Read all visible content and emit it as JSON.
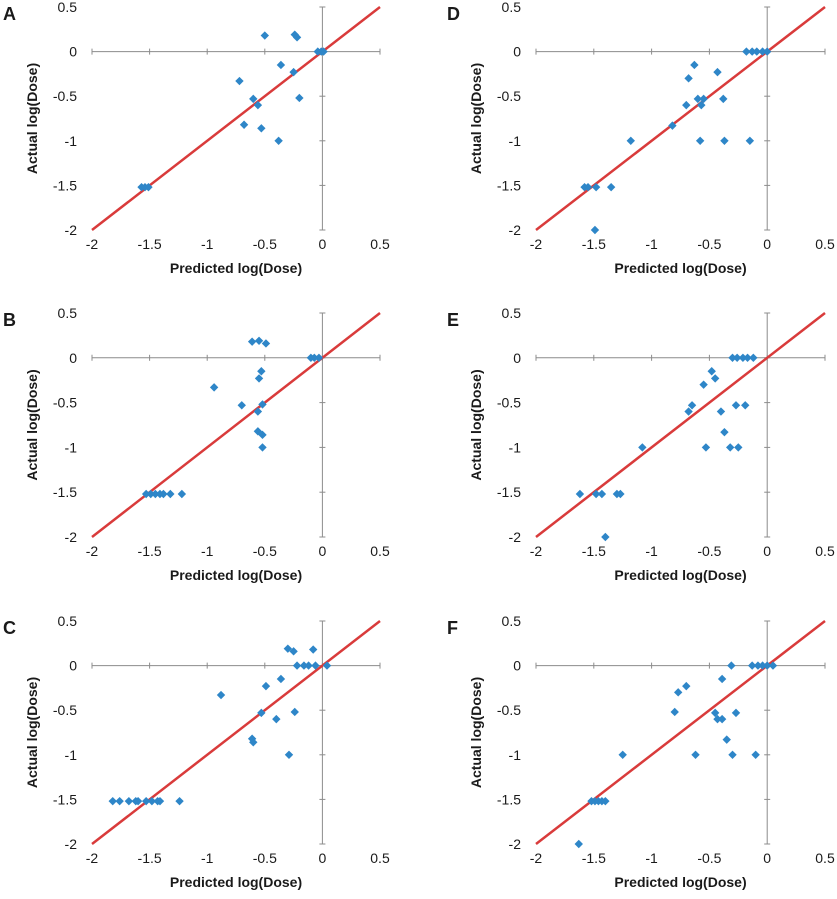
{
  "colors": {
    "marker": "#2E86C8",
    "identity_line": "#D93B3B",
    "axis": "#8C8C8C"
  },
  "chart_data": [
    {
      "panel": "A",
      "type": "scatter",
      "xlabel": "Predicted log(Dose)",
      "ylabel": "Actual log(Dose)",
      "xlim": [
        -2,
        0.5
      ],
      "ylim": [
        -2,
        0.5
      ],
      "xticks": [
        -2,
        -1.5,
        -1,
        -0.5,
        0,
        0.5
      ],
      "yticks": [
        0.5,
        0,
        -0.5,
        -1,
        -1.5,
        -2
      ],
      "identity_line": [
        [
          -2,
          -2
        ],
        [
          0.5,
          0.5
        ]
      ],
      "points": [
        [
          -1.57,
          -1.52
        ],
        [
          -1.54,
          -1.52
        ],
        [
          -1.51,
          -1.52
        ],
        [
          -0.72,
          -0.33
        ],
        [
          -0.68,
          -0.82
        ],
        [
          -0.6,
          -0.53
        ],
        [
          -0.56,
          -0.6
        ],
        [
          -0.53,
          -0.86
        ],
        [
          -0.5,
          0.18
        ],
        [
          -0.38,
          -1.0
        ],
        [
          -0.36,
          -0.15
        ],
        [
          -0.25,
          -0.23
        ],
        [
          -0.24,
          0.19
        ],
        [
          -0.22,
          0.16
        ],
        [
          -0.2,
          -0.52
        ],
        [
          -0.04,
          0.0
        ],
        [
          -0.01,
          0.0
        ],
        [
          0.01,
          0.0
        ]
      ]
    },
    {
      "panel": "B",
      "type": "scatter",
      "xlabel": "Predicted log(Dose)",
      "ylabel": "Actual log(Dose)",
      "xlim": [
        -2,
        0.5
      ],
      "ylim": [
        -2,
        0.5
      ],
      "xticks": [
        -2,
        -1.5,
        -1,
        -0.5,
        0,
        0.5
      ],
      "yticks": [
        0.5,
        0,
        -0.5,
        -1,
        -1.5,
        -2
      ],
      "identity_line": [
        [
          -2,
          -2
        ],
        [
          0.5,
          0.5
        ]
      ],
      "points": [
        [
          -1.53,
          -1.52
        ],
        [
          -1.49,
          -1.52
        ],
        [
          -1.45,
          -1.52
        ],
        [
          -1.41,
          -1.52
        ],
        [
          -1.38,
          -1.52
        ],
        [
          -1.32,
          -1.52
        ],
        [
          -1.22,
          -1.52
        ],
        [
          -0.94,
          -0.33
        ],
        [
          -0.7,
          -0.53
        ],
        [
          -0.61,
          0.18
        ],
        [
          -0.56,
          -0.6
        ],
        [
          -0.56,
          -0.82
        ],
        [
          -0.55,
          0.19
        ],
        [
          -0.55,
          -0.23
        ],
        [
          -0.53,
          -0.15
        ],
        [
          -0.52,
          -0.52
        ],
        [
          -0.52,
          -0.86
        ],
        [
          -0.52,
          -1.0
        ],
        [
          -0.49,
          0.16
        ],
        [
          -0.1,
          0.0
        ],
        [
          -0.07,
          0.0
        ],
        [
          -0.03,
          0.0
        ]
      ]
    },
    {
      "panel": "C",
      "type": "scatter",
      "xlabel": "Predicted log(Dose)",
      "ylabel": "Actual log(Dose)",
      "xlim": [
        -2,
        0.5
      ],
      "ylim": [
        -2,
        0.5
      ],
      "xticks": [
        -2,
        -1.5,
        -1,
        -0.5,
        0,
        0.5
      ],
      "yticks": [
        0.5,
        0,
        -0.5,
        -1,
        -1.5,
        -2
      ],
      "identity_line": [
        [
          -2,
          -2
        ],
        [
          0.5,
          0.5
        ]
      ],
      "points": [
        [
          -1.82,
          -1.52
        ],
        [
          -1.76,
          -1.52
        ],
        [
          -1.68,
          -1.52
        ],
        [
          -1.62,
          -1.52
        ],
        [
          -1.6,
          -1.52
        ],
        [
          -1.53,
          -1.52
        ],
        [
          -1.48,
          -1.52
        ],
        [
          -1.43,
          -1.52
        ],
        [
          -1.41,
          -1.52
        ],
        [
          -1.24,
          -1.52
        ],
        [
          -0.88,
          -0.33
        ],
        [
          -0.61,
          -0.82
        ],
        [
          -0.6,
          -0.86
        ],
        [
          -0.53,
          -0.53
        ],
        [
          -0.49,
          -0.23
        ],
        [
          -0.4,
          -0.6
        ],
        [
          -0.36,
          -0.15
        ],
        [
          -0.3,
          0.19
        ],
        [
          -0.29,
          -1.0
        ],
        [
          -0.25,
          0.16
        ],
        [
          -0.24,
          -0.52
        ],
        [
          -0.22,
          0.0
        ],
        [
          -0.16,
          0.0
        ],
        [
          -0.12,
          0.0
        ],
        [
          -0.08,
          0.18
        ],
        [
          -0.06,
          0.0
        ],
        [
          0.04,
          0.0
        ]
      ]
    },
    {
      "panel": "D",
      "type": "scatter",
      "xlabel": "Predicted log(Dose)",
      "ylabel": "Actual log(Dose)",
      "xlim": [
        -2,
        0.5
      ],
      "ylim": [
        -2,
        0.5
      ],
      "xticks": [
        -2,
        -1.5,
        -1,
        -0.5,
        0,
        0.5
      ],
      "yticks": [
        0.5,
        0,
        -0.5,
        -1,
        -1.5,
        -2
      ],
      "identity_line": [
        [
          -2,
          -2
        ],
        [
          0.5,
          0.5
        ]
      ],
      "points": [
        [
          -1.58,
          -1.52
        ],
        [
          -1.55,
          -1.52
        ],
        [
          -1.48,
          -1.52
        ],
        [
          -1.49,
          -2.0
        ],
        [
          -1.35,
          -1.52
        ],
        [
          -1.18,
          -1.0
        ],
        [
          -0.82,
          -0.83
        ],
        [
          -0.7,
          -0.6
        ],
        [
          -0.68,
          -0.3
        ],
        [
          -0.63,
          -0.15
        ],
        [
          -0.6,
          -0.53
        ],
        [
          -0.58,
          -1.0
        ],
        [
          -0.57,
          -0.6
        ],
        [
          -0.55,
          -0.53
        ],
        [
          -0.43,
          -0.23
        ],
        [
          -0.38,
          -0.53
        ],
        [
          -0.37,
          -1.0
        ],
        [
          -0.18,
          0.0
        ],
        [
          -0.15,
          -1.0
        ],
        [
          -0.13,
          0.0
        ],
        [
          -0.09,
          0.0
        ],
        [
          -0.04,
          0.0
        ],
        [
          0.0,
          0.0
        ]
      ]
    },
    {
      "panel": "E",
      "type": "scatter",
      "xlabel": "Predicted log(Dose)",
      "ylabel": "Actual log(Dose)",
      "xlim": [
        -2,
        0.5
      ],
      "ylim": [
        -2,
        0.5
      ],
      "xticks": [
        -2,
        -1.5,
        -1,
        -0.5,
        0,
        0.5
      ],
      "yticks": [
        0.5,
        0,
        -0.5,
        -1,
        -1.5,
        -2
      ],
      "identity_line": [
        [
          -2,
          -2
        ],
        [
          0.5,
          0.5
        ]
      ],
      "points": [
        [
          -1.62,
          -1.52
        ],
        [
          -1.48,
          -1.52
        ],
        [
          -1.43,
          -1.52
        ],
        [
          -1.4,
          -2.0
        ],
        [
          -1.3,
          -1.52
        ],
        [
          -1.27,
          -1.52
        ],
        [
          -1.08,
          -1.0
        ],
        [
          -0.68,
          -0.6
        ],
        [
          -0.65,
          -0.53
        ],
        [
          -0.55,
          -0.3
        ],
        [
          -0.53,
          -1.0
        ],
        [
          -0.48,
          -0.15
        ],
        [
          -0.45,
          -0.23
        ],
        [
          -0.4,
          -0.6
        ],
        [
          -0.37,
          -0.83
        ],
        [
          -0.32,
          -1.0
        ],
        [
          -0.3,
          0.0
        ],
        [
          -0.27,
          -0.53
        ],
        [
          -0.26,
          0.0
        ],
        [
          -0.25,
          -1.0
        ],
        [
          -0.21,
          0.0
        ],
        [
          -0.19,
          -0.53
        ],
        [
          -0.17,
          0.0
        ],
        [
          -0.12,
          0.0
        ]
      ]
    },
    {
      "panel": "F",
      "type": "scatter",
      "xlabel": "Predicted log(Dose)",
      "ylabel": "Actual log(Dose)",
      "xlim": [
        -2,
        0.5
      ],
      "ylim": [
        -2,
        0.5
      ],
      "xticks": [
        -2,
        -1.5,
        -1,
        -0.5,
        0,
        0.5
      ],
      "yticks": [
        0.5,
        0,
        -0.5,
        -1,
        -1.5,
        -2
      ],
      "identity_line": [
        [
          -2,
          -2
        ],
        [
          0.5,
          0.5
        ]
      ],
      "points": [
        [
          -1.63,
          -2.0
        ],
        [
          -1.52,
          -1.52
        ],
        [
          -1.49,
          -1.52
        ],
        [
          -1.46,
          -1.52
        ],
        [
          -1.43,
          -1.52
        ],
        [
          -1.4,
          -1.52
        ],
        [
          -1.25,
          -1.0
        ],
        [
          -0.8,
          -0.52
        ],
        [
          -0.77,
          -0.3
        ],
        [
          -0.7,
          -0.23
        ],
        [
          -0.62,
          -1.0
        ],
        [
          -0.45,
          -0.53
        ],
        [
          -0.43,
          -0.6
        ],
        [
          -0.39,
          -0.6
        ],
        [
          -0.39,
          -0.15
        ],
        [
          -0.35,
          -0.83
        ],
        [
          -0.31,
          0.0
        ],
        [
          -0.3,
          -1.0
        ],
        [
          -0.27,
          -0.53
        ],
        [
          -0.13,
          0.0
        ],
        [
          -0.1,
          -1.0
        ],
        [
          -0.08,
          0.0
        ],
        [
          -0.04,
          0.0
        ],
        [
          0.0,
          0.0
        ],
        [
          0.05,
          0.0
        ]
      ]
    }
  ]
}
